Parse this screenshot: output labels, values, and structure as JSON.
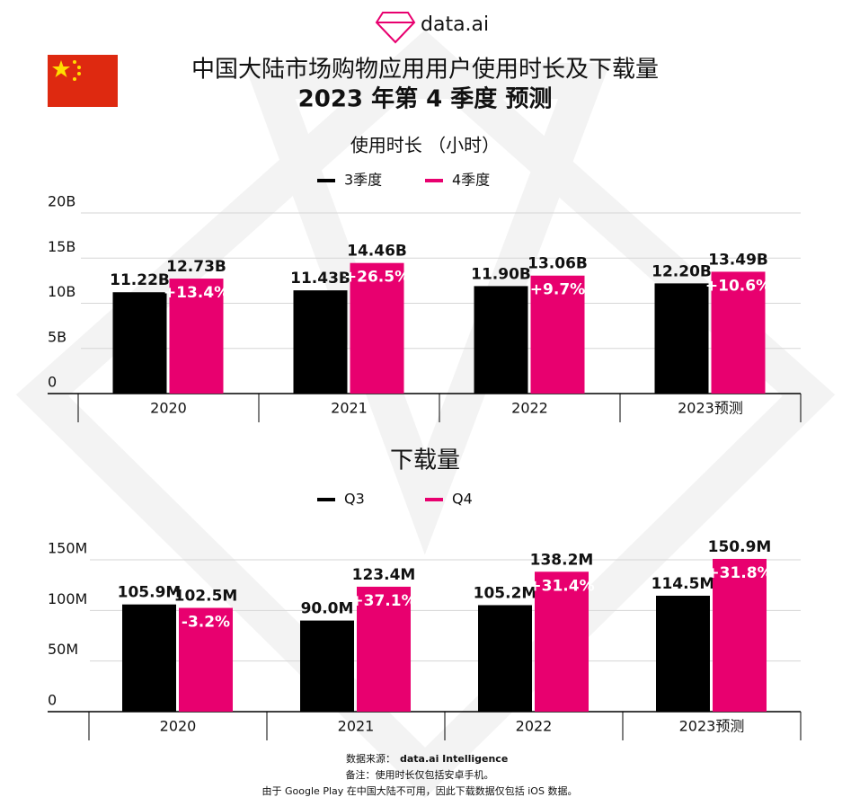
{
  "header": {
    "logo": "data.ai",
    "title": "中国大陆市场购物应用用户使用时长及下载量",
    "subtitle": "2023 年第 4 季度 预测"
  },
  "chart_data": [
    {
      "type": "bar",
      "title": "使用时长 （小时）",
      "categories": [
        "2020",
        "2021",
        "2022",
        "2023预测"
      ],
      "series": [
        {
          "name": "3季度",
          "color": "#000000",
          "values": [
            11.22,
            11.43,
            11.9,
            12.2
          ],
          "value_labels": [
            "11.22B",
            "11.43B",
            "11.90B",
            "12.20B"
          ]
        },
        {
          "name": "4季度",
          "color": "#e8006f",
          "values": [
            12.73,
            14.46,
            13.06,
            13.49
          ],
          "value_labels": [
            "12.73B",
            "14.46B",
            "13.06B",
            "13.49B"
          ]
        }
      ],
      "annotations": [
        "+13.4%",
        "+26.5%",
        "+9.7%",
        "+10.6%"
      ],
      "ylim": [
        0,
        20
      ],
      "yticks": [
        0,
        {
          "value": 5,
          "label": "5B"
        },
        {
          "value": 10,
          "label": "10B"
        },
        {
          "value": 15,
          "label": "15B"
        },
        {
          "value": 20,
          "label": "20B"
        }
      ],
      "grid": true
    },
    {
      "type": "bar",
      "title": "下载量",
      "categories": [
        "2020",
        "2021",
        "2022",
        "2023预测"
      ],
      "series": [
        {
          "name": "Q3",
          "color": "#000000",
          "values": [
            105.9,
            90.0,
            105.2,
            114.5
          ],
          "value_labels": [
            "105.9M",
            "90.0M",
            "105.2M",
            "114.5M"
          ]
        },
        {
          "name": "Q4",
          "color": "#e8006f",
          "values": [
            102.5,
            123.4,
            138.2,
            150.9
          ],
          "value_labels": [
            "102.5M",
            "123.4M",
            "138.2M",
            "150.9M"
          ]
        }
      ],
      "annotations": [
        "-3.2%",
        "+37.1%",
        "+31.4%",
        "+31.8%"
      ],
      "ylim": [
        0,
        150
      ],
      "yticks": [
        0,
        {
          "value": 50,
          "label": "50M"
        },
        {
          "value": 100,
          "label": "100M"
        },
        {
          "value": 150,
          "label": "150M"
        }
      ],
      "grid": true
    }
  ],
  "footer": {
    "source_label": "数据来源：",
    "source": "data.ai Intelligence",
    "note1": "备注：使用时长仅包括安卓手机。",
    "note2": "由于 Google Play 在中国大陆不可用，因此下载数据仅包括 iOS 数据。"
  }
}
